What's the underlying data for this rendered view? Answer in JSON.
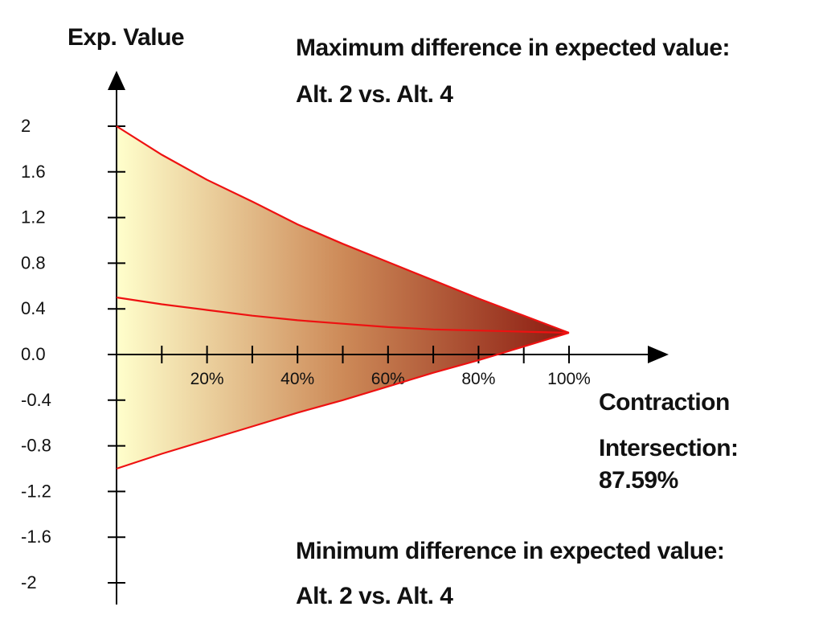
{
  "chart_data": {
    "type": "area",
    "ylabel": "Exp. Value",
    "xlabel": "Contraction",
    "xlim": [
      0,
      100
    ],
    "ylim": [
      -2,
      2
    ],
    "x_ticks": [
      0,
      10,
      20,
      30,
      40,
      50,
      60,
      70,
      80,
      90,
      100
    ],
    "x_tick_labels": [
      {
        "x": 20,
        "label": "20%"
      },
      {
        "x": 40,
        "label": "40%"
      },
      {
        "x": 60,
        "label": "60%"
      },
      {
        "x": 80,
        "label": "80%"
      },
      {
        "x": 100,
        "label": "100%"
      }
    ],
    "y_tick_labels": [
      {
        "y": 2,
        "label": "2"
      },
      {
        "y": 1.6,
        "label": "1.6"
      },
      {
        "y": 1.2,
        "label": "1.2"
      },
      {
        "y": 0.8,
        "label": "0.8"
      },
      {
        "y": 0.4,
        "label": "0.4"
      },
      {
        "y": 0,
        "label": "0.0"
      },
      {
        "y": -0.4,
        "label": "-0.4"
      },
      {
        "y": -0.8,
        "label": "-0.8"
      },
      {
        "y": -1.2,
        "label": "-1.2"
      },
      {
        "y": -1.6,
        "label": "-1.6"
      },
      {
        "y": -2,
        "label": "-2"
      }
    ],
    "series": [
      {
        "x": [
          0,
          10,
          20,
          30,
          40,
          50,
          60,
          70,
          80,
          90,
          100
        ],
        "y": [
          2.0,
          1.75,
          1.53,
          1.34,
          1.14,
          0.97,
          0.81,
          0.65,
          0.49,
          0.34,
          0.19
        ]
      },
      {
        "x": [
          0,
          10,
          20,
          30,
          40,
          50,
          60,
          70,
          80,
          90,
          100
        ],
        "y": [
          0.5,
          0.44,
          0.39,
          0.34,
          0.3,
          0.27,
          0.24,
          0.22,
          0.21,
          0.2,
          0.19
        ]
      },
      {
        "x": [
          0,
          10,
          20,
          30,
          40,
          50,
          60,
          70,
          80,
          90,
          100
        ],
        "y": [
          -1.0,
          -0.87,
          -0.75,
          -0.63,
          -0.51,
          -0.4,
          -0.28,
          -0.16,
          -0.05,
          0.07,
          0.19
        ]
      }
    ],
    "intersection_x": 87.59,
    "colors": {
      "line": "#ee1111",
      "fill_start": "#ffffcc",
      "fill_mid": "#cd8a58",
      "fill_end": "#8b1a10",
      "axis": "#000000"
    }
  },
  "annotations": {
    "max_title": "Maximum difference in expected value:",
    "max_alts": "Alt. 2 vs. Alt. 4",
    "intersection_label": "Intersection:",
    "intersection_value": "87.59%",
    "min_title": "Minimum difference in expected value:",
    "min_alts": "Alt. 2 vs. Alt. 4"
  }
}
